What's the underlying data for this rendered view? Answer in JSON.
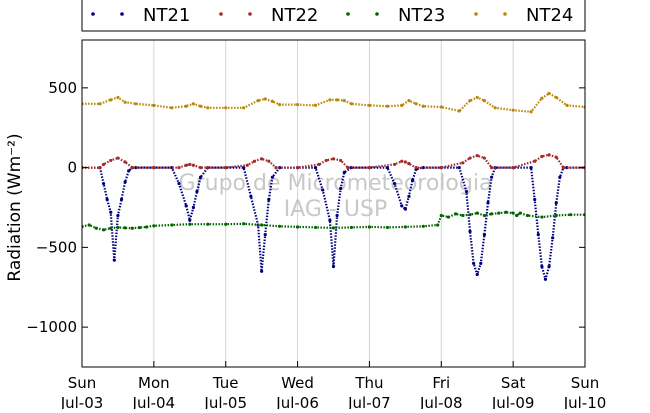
{
  "chart_data": {
    "type": "scatter",
    "ylabel": "Radiation (Wm⁻²)",
    "ylim": [
      -1250,
      800
    ],
    "xlim": [
      0,
      7
    ],
    "y_ticks": [
      500,
      0,
      -500,
      -1000
    ],
    "y_tick_labels": [
      "500",
      "0",
      "−500",
      "−1000"
    ],
    "x_ticks": [
      0,
      1,
      2,
      3,
      4,
      5,
      6,
      7
    ],
    "x_tick_labels_day": [
      "Sun",
      "Mon",
      "Tue",
      "Wed",
      "Thu",
      "Fri",
      "Sat",
      "Sun"
    ],
    "x_tick_labels_date": [
      "Jul-03",
      "Jul-04",
      "Jul-05",
      "Jul-06",
      "Jul-07",
      "Jul-08",
      "Jul-09",
      "Jul-10"
    ],
    "grid": "vertical",
    "legend_position": "top",
    "watermark": [
      "Grupo de Micrometeorologia",
      "IAG - USP"
    ],
    "series": [
      {
        "name": "NT21",
        "color": "#00007f",
        "x": [
          0.0,
          0.25,
          0.3,
          0.35,
          0.4,
          0.45,
          0.5,
          0.55,
          0.6,
          0.65,
          0.7,
          0.75,
          1.0,
          1.25,
          1.35,
          1.45,
          1.5,
          1.55,
          1.6,
          1.65,
          1.75,
          2.0,
          2.25,
          2.35,
          2.45,
          2.5,
          2.55,
          2.6,
          2.65,
          2.75,
          3.0,
          3.25,
          3.35,
          3.45,
          3.5,
          3.55,
          3.6,
          3.65,
          3.75,
          4.0,
          4.25,
          4.35,
          4.45,
          4.5,
          4.55,
          4.6,
          4.65,
          4.75,
          5.0,
          5.25,
          5.35,
          5.4,
          5.45,
          5.5,
          5.55,
          5.6,
          5.65,
          5.7,
          5.75,
          6.0,
          6.25,
          6.3,
          6.35,
          6.4,
          6.45,
          6.5,
          6.55,
          6.6,
          6.65,
          6.7,
          6.75,
          7.0
        ],
        "y": [
          0,
          0,
          -100,
          -200,
          -280,
          -580,
          -300,
          -200,
          -90,
          -20,
          0,
          0,
          0,
          0,
          -100,
          -240,
          -330,
          -250,
          -150,
          -60,
          0,
          0,
          0,
          -180,
          -360,
          -650,
          -420,
          -200,
          -60,
          0,
          0,
          0,
          -140,
          -330,
          -620,
          -300,
          -130,
          -30,
          0,
          0,
          0,
          -100,
          -240,
          -260,
          -180,
          -80,
          -10,
          0,
          0,
          0,
          -150,
          -400,
          -600,
          -670,
          -600,
          -420,
          -220,
          -60,
          0,
          0,
          0,
          -200,
          -420,
          -620,
          -700,
          -620,
          -440,
          -220,
          -60,
          0,
          0,
          0
        ]
      },
      {
        "name": "NT22",
        "color": "#a52a2a",
        "x": [
          0.0,
          0.25,
          0.3,
          0.4,
          0.5,
          0.6,
          0.7,
          1.0,
          1.35,
          1.45,
          1.5,
          1.55,
          1.65,
          1.75,
          2.0,
          2.3,
          2.4,
          2.5,
          2.6,
          2.7,
          3.0,
          3.3,
          3.4,
          3.5,
          3.6,
          3.7,
          4.0,
          4.35,
          4.45,
          4.5,
          4.55,
          4.65,
          5.0,
          5.3,
          5.4,
          5.5,
          5.6,
          5.7,
          6.0,
          6.3,
          6.4,
          6.5,
          6.6,
          6.7,
          7.0
        ],
        "y": [
          0,
          0,
          20,
          45,
          60,
          35,
          0,
          0,
          0,
          15,
          20,
          15,
          0,
          0,
          0,
          15,
          40,
          55,
          40,
          0,
          0,
          20,
          45,
          55,
          45,
          0,
          0,
          20,
          40,
          35,
          25,
          0,
          0,
          30,
          60,
          75,
          60,
          0,
          0,
          40,
          70,
          80,
          65,
          0,
          0
        ]
      },
      {
        "name": "NT23",
        "color": "#006400",
        "x": [
          0.0,
          0.1,
          0.2,
          0.3,
          0.4,
          0.5,
          0.6,
          0.7,
          0.8,
          0.9,
          1.0,
          1.25,
          1.5,
          1.75,
          2.0,
          2.25,
          2.5,
          2.75,
          3.0,
          3.25,
          3.5,
          3.75,
          4.0,
          4.25,
          4.5,
          4.75,
          4.95,
          5.0,
          5.1,
          5.2,
          5.3,
          5.4,
          5.5,
          5.6,
          5.7,
          5.8,
          5.9,
          6.0,
          6.05,
          6.1,
          6.2,
          6.4,
          6.6,
          6.8,
          7.0
        ],
        "y": [
          -370,
          -360,
          -380,
          -390,
          -380,
          -375,
          -378,
          -380,
          -376,
          -372,
          -365,
          -360,
          -355,
          -355,
          -355,
          -352,
          -360,
          -368,
          -372,
          -375,
          -378,
          -375,
          -372,
          -375,
          -372,
          -368,
          -360,
          -300,
          -310,
          -290,
          -300,
          -295,
          -285,
          -300,
          -290,
          -285,
          -280,
          -285,
          -300,
          -285,
          -300,
          -310,
          -300,
          -295,
          -295
        ]
      },
      {
        "name": "NT24",
        "color": "#b8860b",
        "x": [
          0.0,
          0.25,
          0.4,
          0.5,
          0.6,
          0.75,
          1.0,
          1.25,
          1.45,
          1.55,
          1.65,
          1.75,
          2.0,
          2.25,
          2.45,
          2.55,
          2.65,
          2.75,
          3.0,
          3.25,
          3.45,
          3.55,
          3.65,
          3.75,
          4.0,
          4.25,
          4.45,
          4.55,
          4.65,
          4.75,
          5.0,
          5.25,
          5.4,
          5.5,
          5.6,
          5.75,
          6.0,
          6.25,
          6.4,
          6.5,
          6.6,
          6.75,
          7.0
        ],
        "y": [
          400,
          400,
          425,
          440,
          410,
          400,
          390,
          375,
          385,
          400,
          385,
          375,
          375,
          375,
          420,
          430,
          415,
          395,
          395,
          390,
          425,
          425,
          420,
          400,
          390,
          385,
          390,
          420,
          400,
          385,
          380,
          355,
          420,
          440,
          420,
          375,
          360,
          350,
          435,
          465,
          440,
          390,
          380
        ]
      }
    ]
  }
}
